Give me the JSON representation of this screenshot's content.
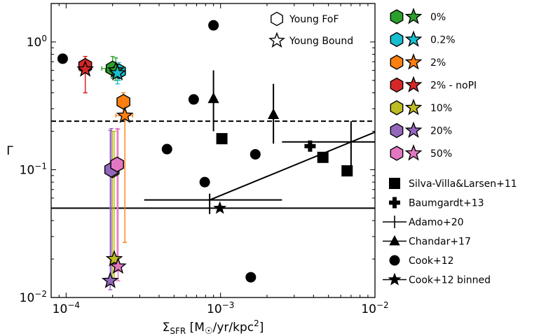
{
  "chart_data": {
    "type": "scatter",
    "xscale": "log",
    "yscale": "log",
    "xlim": [
      8e-05,
      0.01
    ],
    "ylim": [
      0.01,
      2.0
    ],
    "xlabel_main": "Σ",
    "xlabel_sub": "SFR",
    "xlabel_unit": " [M",
    "xlabel_sun": "☉",
    "xlabel_rest": "/yr/kpc",
    "xlabel_sup": "2",
    "xlabel_close": "]",
    "ylabel": "Γ",
    "xticks": [
      {
        "value": 0.0001,
        "base": "10",
        "exp": "−4"
      },
      {
        "value": 0.001,
        "base": "10",
        "exp": "−3"
      },
      {
        "value": 0.01,
        "base": "10",
        "exp": "−2"
      }
    ],
    "yticks": [
      {
        "value": 0.01,
        "base": "10",
        "exp": "−2"
      },
      {
        "value": 0.1,
        "base": "10",
        "exp": "−1"
      },
      {
        "value": 1.0,
        "base": "10",
        "exp": "0"
      }
    ],
    "reference_lines": [
      {
        "name": "dashed-reference",
        "y": 0.24,
        "style": "dashed"
      },
      {
        "name": "solid-reference",
        "y": 0.05,
        "style": "solid"
      }
    ],
    "model_series": [
      {
        "label": "0%",
        "color": "#2ca02c",
        "fof": {
          "x": 0.0002,
          "y": 0.62,
          "xerr": [
            3e-05,
            3e-05
          ],
          "yerr": [
            0.1,
            0.15
          ]
        },
        "bound": {
          "x": 0.00021,
          "y": 0.6,
          "xerr": [
            3e-05,
            3e-05
          ],
          "yerr": [
            0.1,
            0.15
          ]
        }
      },
      {
        "label": "0.2%",
        "color": "#17becf",
        "fof": {
          "x": 0.00022,
          "y": 0.59,
          "xerr": [
            2e-05,
            2e-05
          ],
          "yerr": [
            0.09,
            0.1
          ]
        },
        "bound": {
          "x": 0.000215,
          "y": 0.57,
          "xerr": [
            2e-05,
            2e-05
          ],
          "yerr": [
            0.1,
            0.1
          ]
        }
      },
      {
        "label": "2%",
        "color": "#ff7f0e",
        "fof": {
          "x": 0.000235,
          "y": 0.34,
          "xerr": [
            2e-05,
            2e-05
          ],
          "yerr": [
            0.08,
            0.06
          ]
        },
        "bound": {
          "x": 0.00024,
          "y": 0.265,
          "xerr": [
            3e-05,
            3e-05
          ],
          "yerr": [
            0.238,
            0.06
          ]
        }
      },
      {
        "label": "2% - noPI",
        "color": "#d62728",
        "fof": {
          "x": 0.000133,
          "y": 0.65,
          "xerr": [
            1e-05,
            1e-05
          ],
          "yerr": [
            0.25,
            0.12
          ]
        },
        "bound": {
          "x": 0.000133,
          "y": 0.61,
          "xerr": [
            1e-05,
            1e-05
          ],
          "yerr": [
            0.21,
            0.16
          ]
        }
      },
      {
        "label": "10%",
        "color": "#bcbd22",
        "fof": {
          "x": 0.0002,
          "y": 0.099,
          "xerr": [
            8e-06,
            8e-06
          ],
          "yerr": [
            0.085,
            0.1
          ]
        },
        "bound": {
          "x": 0.000205,
          "y": 0.02,
          "xerr": [
            8e-06,
            8e-06
          ],
          "yerr": [
            0.006,
            0.18
          ]
        }
      },
      {
        "label": "20%",
        "color": "#9467bd",
        "fof": {
          "x": 0.000196,
          "y": 0.1,
          "xerr": [
            8e-06,
            8e-06
          ],
          "yerr": [
            0.087,
            0.11
          ]
        },
        "bound": {
          "x": 0.000193,
          "y": 0.0135,
          "xerr": [
            6e-06,
            6e-06
          ],
          "yerr": [
            0.002,
            0.19
          ]
        }
      },
      {
        "label": "50%",
        "color": "#e377c2",
        "fof": {
          "x": 0.000214,
          "y": 0.11,
          "xerr": [
            1e-05,
            1e-05
          ],
          "yerr": [
            0.094,
            0.1
          ]
        },
        "bound": {
          "x": 0.000217,
          "y": 0.0175,
          "xerr": [
            8e-06,
            8e-06
          ],
          "yerr": [
            0.004,
            0.19
          ]
        }
      }
    ],
    "shape_legend": [
      "Young FoF",
      "Young Bound"
    ],
    "observations": [
      {
        "label": "Silva-Villa&Larsen+11",
        "marker": "square",
        "points": [
          [
            0.00102,
            0.175
          ],
          [
            0.0046,
            0.125
          ],
          [
            0.0066,
            0.098
          ]
        ]
      },
      {
        "label": "Baumgardt+13",
        "marker": "plus",
        "points": [
          [
            0.0038,
            0.153
          ]
        ]
      },
      {
        "label": "Adamo+20",
        "marker": "errcross",
        "points": [
          {
            "x": 0.00085,
            "y": 0.058,
            "xlo": 0.00032,
            "xhi": 0.0025,
            "ylo": 0.045,
            "yhi": 0.065
          },
          {
            "x": 0.007,
            "y": 0.165,
            "xlo": 0.0025,
            "xhi": 0.01,
            "ylo": 0.1,
            "yhi": 0.24
          }
        ]
      },
      {
        "label": "Chandar+17",
        "marker": "triangle",
        "points": [
          {
            "x": 0.0009,
            "y": 0.36,
            "ylo": 0.2,
            "yhi": 0.6
          },
          {
            "x": 0.0022,
            "y": 0.27,
            "ylo": 0.16,
            "yhi": 0.47
          }
        ]
      },
      {
        "label": "Cook+12",
        "marker": "circle",
        "points": [
          [
            9.5e-05,
            0.74
          ],
          [
            0.00045,
            0.145
          ],
          [
            0.00067,
            0.355
          ],
          [
            0.00079,
            0.08
          ],
          [
            0.0009,
            1.35
          ],
          [
            0.00168,
            0.132
          ],
          [
            0.00157,
            0.0144
          ]
        ]
      },
      {
        "label": "Cook+12 binned",
        "marker": "star",
        "points": [
          [
            0.00099,
            0.05
          ]
        ]
      }
    ]
  }
}
